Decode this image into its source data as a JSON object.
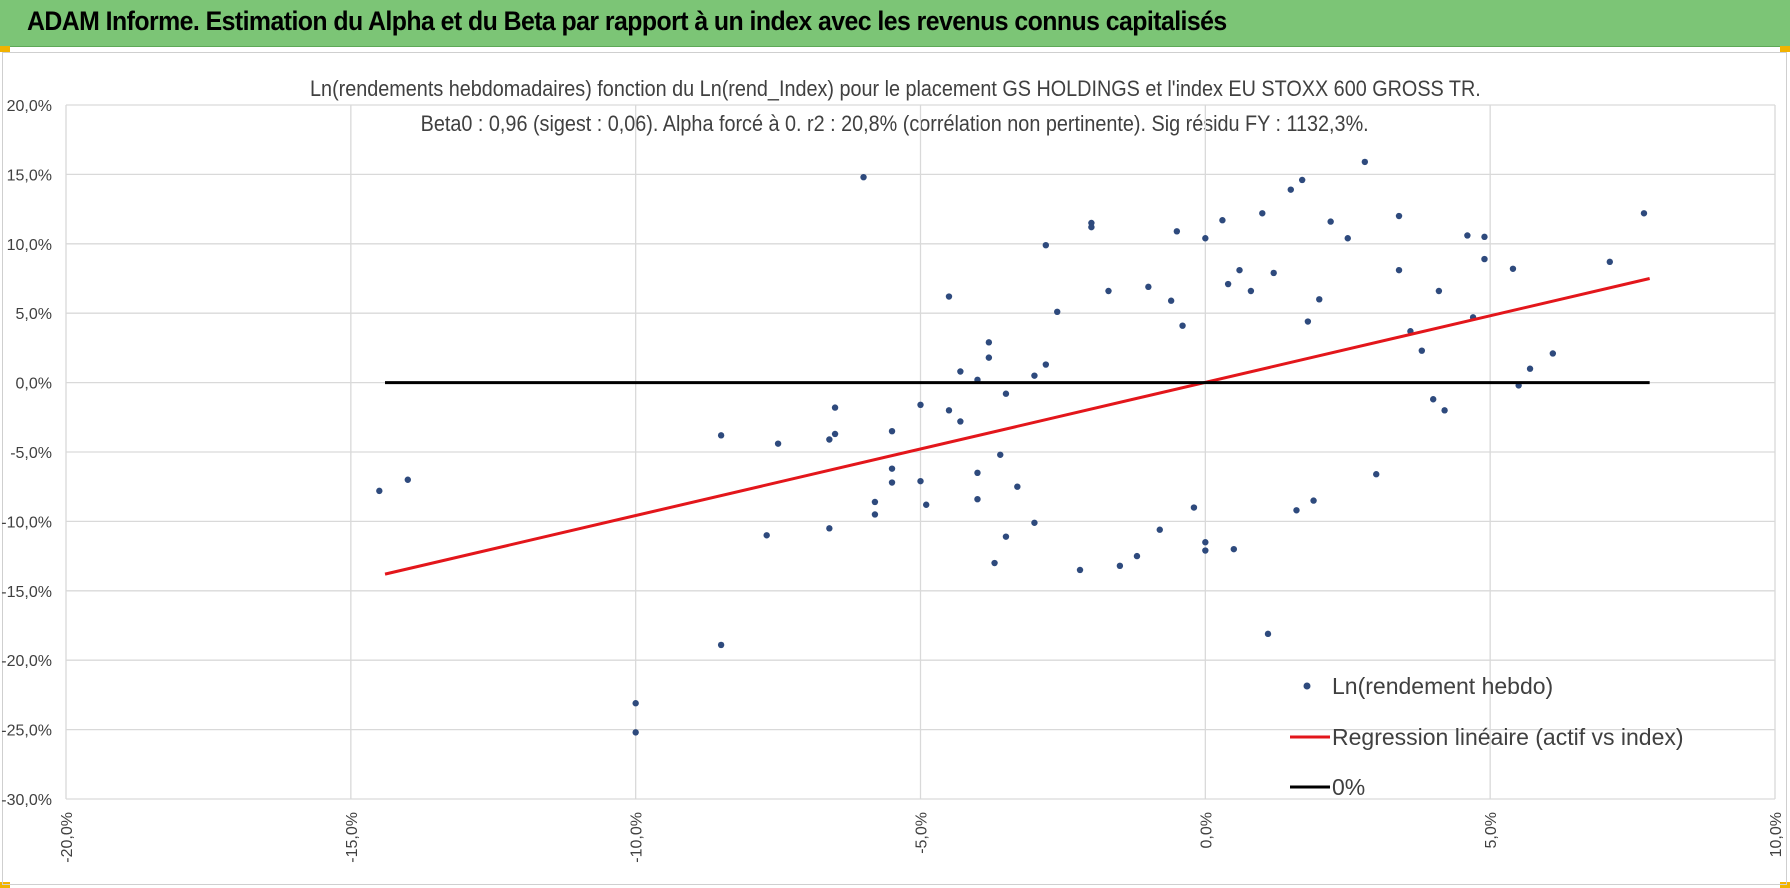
{
  "header": {
    "title": "ADAM Informe. Estimation du Alpha et du Beta par rapport à un index avec les revenus connus capitalisés",
    "bg_color": "#7cc576"
  },
  "chart_data": {
    "type": "scatter",
    "title_line1": "Ln(rendements hebdomadaires) fonction du Ln(rend_Index) pour le placement GS HOLDINGS et l'index EU STOXX 600 GROSS TR.",
    "title_line2": "Beta0 : 0,96 (sigest : 0,06).  Alpha forcé à 0. r2 : 20,8% (corrélation non pertinente). Sig résidu FY : 1132,3%.",
    "xlim": [
      -0.2,
      0.1
    ],
    "ylim": [
      -0.3,
      0.2
    ],
    "x_ticks": [
      -0.2,
      -0.15,
      -0.1,
      -0.05,
      0.0,
      0.05,
      0.1
    ],
    "x_tick_labels": [
      "-20,0%",
      "-15,0%",
      "-10,0%",
      "-5,0%",
      "0,0%",
      "5,0%",
      "10,0%"
    ],
    "y_ticks": [
      0.2,
      0.15,
      0.1,
      0.05,
      0.0,
      -0.05,
      -0.1,
      -0.15,
      -0.2,
      -0.25,
      -0.3
    ],
    "y_tick_labels": [
      "20,0%",
      "15,0%",
      "10,0%",
      "5,0%",
      "0,0%",
      "-5,0%",
      "-10,0%",
      "-15,0%",
      "-20,0%",
      "-25,0%",
      "-30,0%"
    ],
    "grid": true,
    "legend_position": "bottom-right",
    "series": [
      {
        "name": "Ln(rendement hebdo)",
        "kind": "points",
        "color": "#2e4a7d",
        "points": [
          [
            -0.145,
            -0.078
          ],
          [
            -0.14,
            -0.07
          ],
          [
            -0.1,
            -0.231
          ],
          [
            -0.1,
            -0.252
          ],
          [
            -0.085,
            -0.189
          ],
          [
            -0.085,
            -0.038
          ],
          [
            -0.075,
            -0.044
          ],
          [
            -0.077,
            -0.11
          ],
          [
            -0.066,
            -0.105
          ],
          [
            -0.066,
            -0.041
          ],
          [
            -0.065,
            -0.037
          ],
          [
            -0.065,
            -0.018
          ],
          [
            -0.06,
            0.148
          ],
          [
            -0.055,
            -0.035
          ],
          [
            -0.055,
            -0.062
          ],
          [
            -0.055,
            -0.072
          ],
          [
            -0.058,
            -0.095
          ],
          [
            -0.058,
            -0.086
          ],
          [
            -0.05,
            -0.071
          ],
          [
            -0.05,
            -0.016
          ],
          [
            -0.049,
            -0.088
          ],
          [
            -0.045,
            0.062
          ],
          [
            -0.045,
            -0.02
          ],
          [
            -0.043,
            -0.028
          ],
          [
            -0.043,
            0.008
          ],
          [
            -0.04,
            -0.084
          ],
          [
            -0.04,
            -0.065
          ],
          [
            -0.04,
            0.002
          ],
          [
            -0.038,
            0.029
          ],
          [
            -0.038,
            0.018
          ],
          [
            -0.037,
            -0.13
          ],
          [
            -0.036,
            -0.052
          ],
          [
            -0.035,
            -0.111
          ],
          [
            -0.035,
            -0.008
          ],
          [
            -0.033,
            -0.075
          ],
          [
            -0.03,
            0.005
          ],
          [
            -0.03,
            -0.101
          ],
          [
            -0.028,
            0.013
          ],
          [
            -0.028,
            0.099
          ],
          [
            -0.026,
            0.051
          ],
          [
            -0.022,
            -0.135
          ],
          [
            -0.02,
            0.115
          ],
          [
            -0.02,
            0.112
          ],
          [
            -0.017,
            0.066
          ],
          [
            -0.015,
            -0.132
          ],
          [
            -0.012,
            -0.125
          ],
          [
            -0.01,
            0.069
          ],
          [
            -0.008,
            -0.106
          ],
          [
            -0.005,
            0.109
          ],
          [
            -0.002,
            -0.09
          ],
          [
            0.0,
            -0.115
          ],
          [
            0.0,
            -0.121
          ],
          [
            0.0,
            0.104
          ],
          [
            0.003,
            0.117
          ],
          [
            0.005,
            -0.12
          ],
          [
            0.01,
            0.122
          ],
          [
            0.012,
            0.079
          ],
          [
            0.015,
            0.139
          ],
          [
            0.017,
            0.146
          ],
          [
            0.02,
            0.06
          ],
          [
            0.022,
            0.116
          ],
          [
            0.025,
            0.104
          ],
          [
            0.028,
            0.159
          ],
          [
            0.03,
            -0.066
          ],
          [
            0.034,
            0.12
          ],
          [
            0.034,
            0.081
          ],
          [
            0.036,
            0.037
          ],
          [
            0.038,
            0.023
          ],
          [
            0.04,
            -0.012
          ],
          [
            0.041,
            0.066
          ],
          [
            0.042,
            -0.02
          ],
          [
            0.046,
            0.106
          ],
          [
            0.047,
            0.047
          ],
          [
            0.049,
            0.105
          ],
          [
            0.049,
            0.089
          ],
          [
            0.054,
            0.082
          ],
          [
            0.055,
            -0.002
          ],
          [
            0.057,
            0.01
          ],
          [
            0.061,
            0.021
          ],
          [
            0.071,
            0.087
          ],
          [
            0.077,
            0.122
          ],
          [
            0.011,
            -0.181
          ],
          [
            0.008,
            0.066
          ],
          [
            0.006,
            0.081
          ],
          [
            0.004,
            0.071
          ],
          [
            -0.006,
            0.059
          ],
          [
            -0.004,
            0.041
          ],
          [
            0.018,
            0.044
          ],
          [
            0.016,
            -0.092
          ],
          [
            0.019,
            -0.085
          ]
        ]
      },
      {
        "name": "Regression linéaire (actif vs index)",
        "kind": "line",
        "color": "#e3161b",
        "x": [
          -0.144,
          0.078
        ],
        "y": [
          -0.138,
          0.075
        ]
      },
      {
        "name": "0%",
        "kind": "line",
        "color": "#000000",
        "x": [
          -0.144,
          0.078
        ],
        "y": [
          0.0,
          0.0
        ]
      }
    ]
  }
}
